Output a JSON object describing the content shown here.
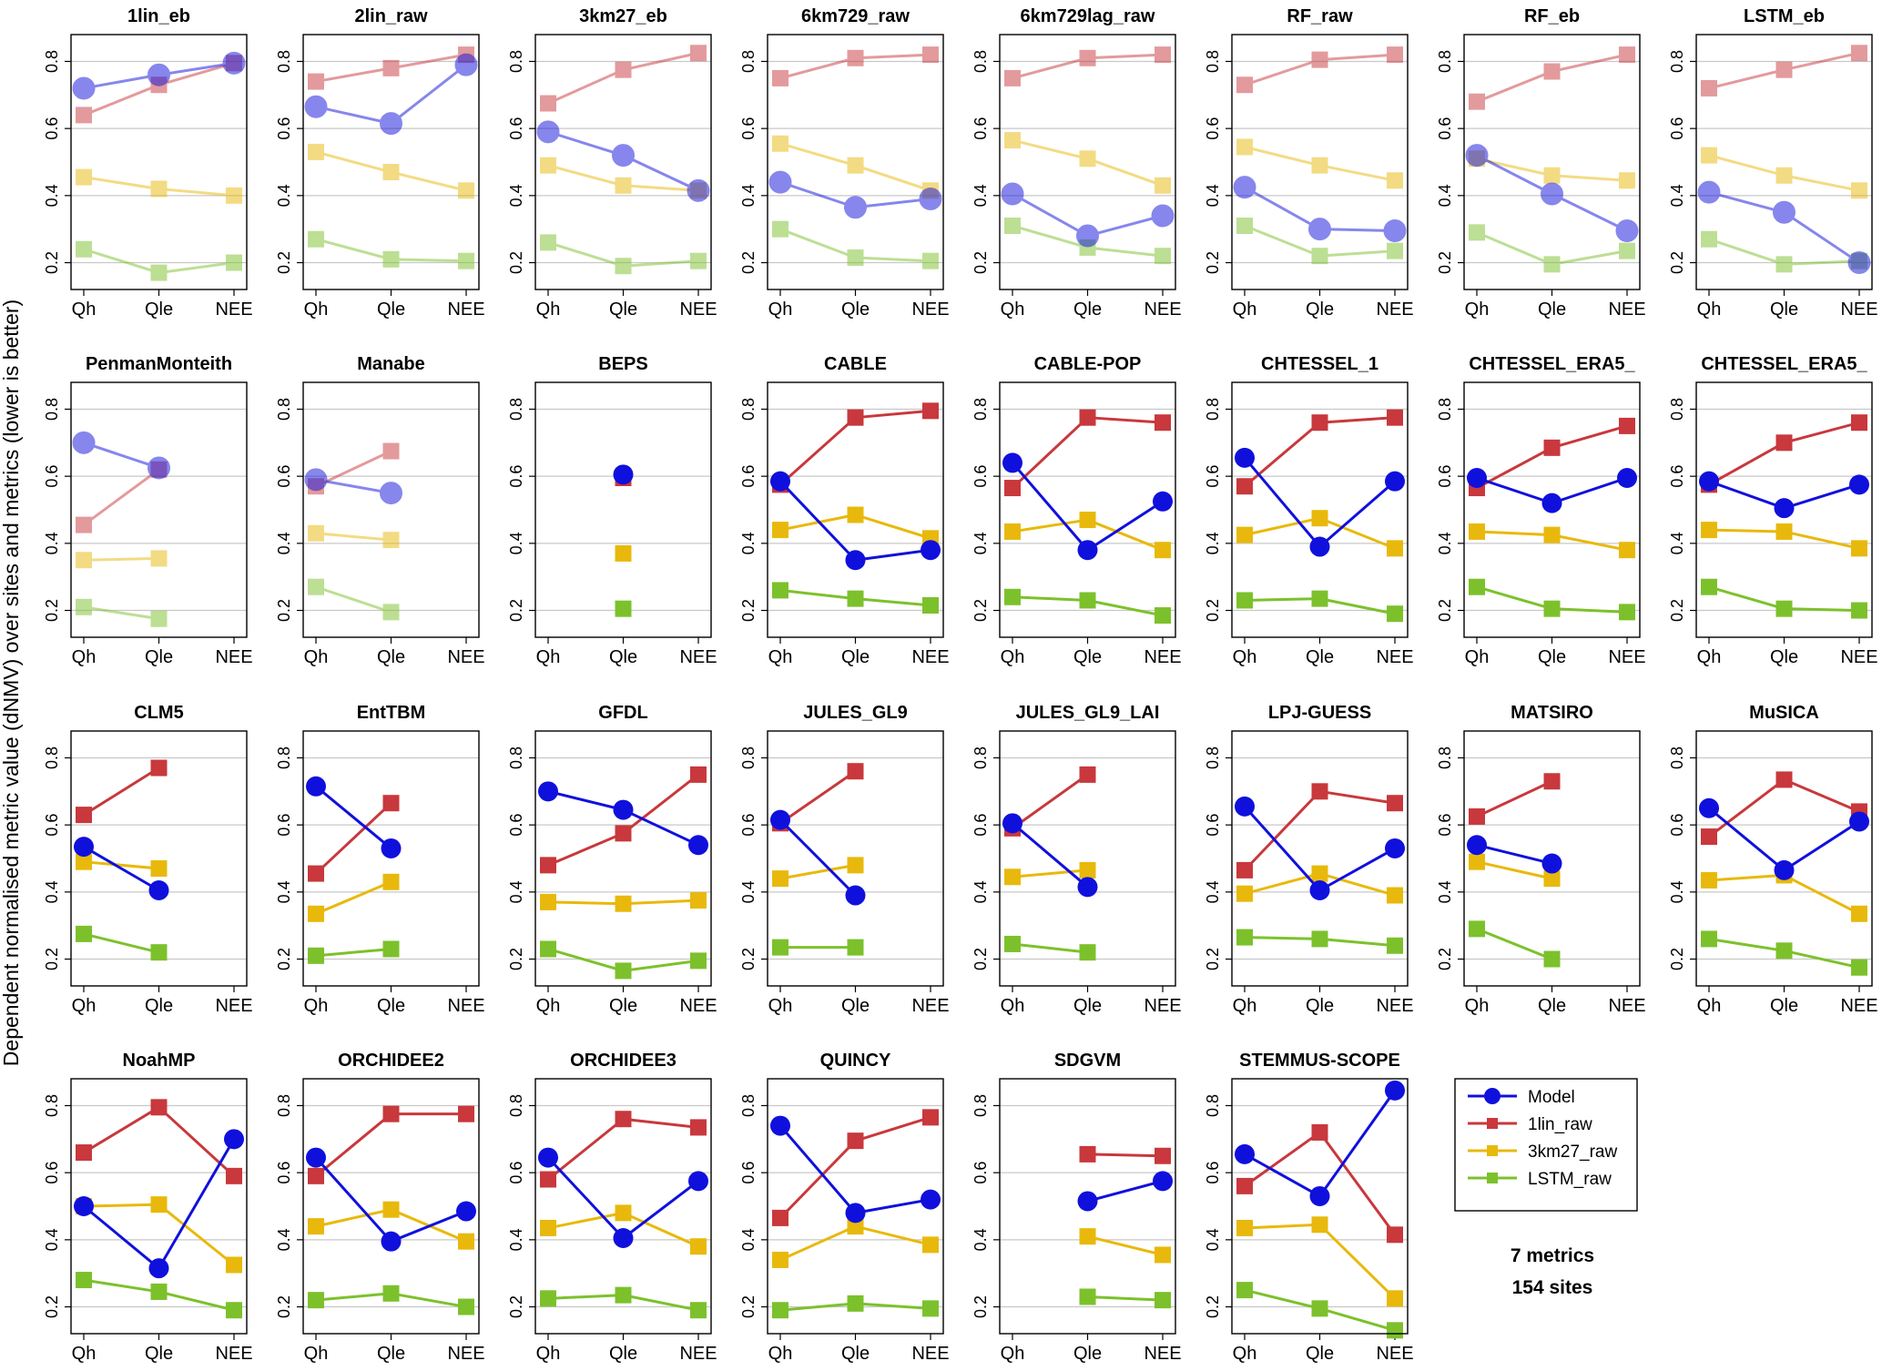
{
  "figure": {
    "ylabel": "Dependent normalised metric value (dNMV) over sites and metrics (lower is better)",
    "note_metrics": "7 metrics",
    "note_sites": "154 sites",
    "colors": {
      "Model": "#1010dd",
      "1lin_raw": "#c8383c",
      "3km27_raw": "#e8b90c",
      "LSTM_raw": "#7cc12c",
      "grid": "#c8c8c8",
      "frame": "#000000"
    }
  },
  "chart_data": {
    "type": "line",
    "categories": [
      "Qh",
      "Qle",
      "NEE"
    ],
    "ylim": [
      0.12,
      0.88
    ],
    "yticks": [
      "0.2",
      "0.4",
      "0.6",
      "0.8"
    ],
    "legend": {
      "placement": "right",
      "entries": [
        {
          "key": "Model",
          "label": "Model",
          "marker": "circle"
        },
        {
          "key": "1lin_raw",
          "label": "1lin_raw",
          "marker": "square"
        },
        {
          "key": "3km27_raw",
          "label": "3km27_raw",
          "marker": "square"
        },
        {
          "key": "LSTM_raw",
          "label": "LSTM_raw",
          "marker": "square"
        }
      ]
    },
    "panels": [
      {
        "title": "1lin_eb",
        "faded": true,
        "series": {
          "Model": [
            0.72,
            0.76,
            0.795
          ],
          "1lin_raw": [
            0.64,
            0.73,
            0.795
          ],
          "3km27_raw": [
            0.455,
            0.42,
            0.4
          ],
          "LSTM_raw": [
            0.24,
            0.17,
            0.2
          ]
        }
      },
      {
        "title": "2lin_raw",
        "faded": true,
        "series": {
          "Model": [
            0.665,
            0.615,
            0.79
          ],
          "1lin_raw": [
            0.74,
            0.78,
            0.82
          ],
          "3km27_raw": [
            0.53,
            0.47,
            0.415
          ],
          "LSTM_raw": [
            0.27,
            0.21,
            0.205
          ]
        }
      },
      {
        "title": "3km27_eb",
        "faded": true,
        "series": {
          "Model": [
            0.59,
            0.52,
            0.415
          ],
          "1lin_raw": [
            0.675,
            0.775,
            0.825
          ],
          "3km27_raw": [
            0.49,
            0.43,
            0.415
          ],
          "LSTM_raw": [
            0.26,
            0.19,
            0.205
          ]
        }
      },
      {
        "title": "6km729_raw",
        "faded": true,
        "series": {
          "Model": [
            0.44,
            0.365,
            0.39
          ],
          "1lin_raw": [
            0.75,
            0.81,
            0.82
          ],
          "3km27_raw": [
            0.555,
            0.49,
            0.415
          ],
          "LSTM_raw": [
            0.3,
            0.215,
            0.205
          ]
        }
      },
      {
        "title": "6km729lag_raw",
        "faded": true,
        "series": {
          "Model": [
            0.405,
            0.28,
            0.34
          ],
          "1lin_raw": [
            0.75,
            0.81,
            0.82
          ],
          "3km27_raw": [
            0.565,
            0.51,
            0.43
          ],
          "LSTM_raw": [
            0.31,
            0.245,
            0.22
          ]
        }
      },
      {
        "title": "RF_raw",
        "faded": true,
        "series": {
          "Model": [
            0.425,
            0.3,
            0.295
          ],
          "1lin_raw": [
            0.73,
            0.805,
            0.82
          ],
          "3km27_raw": [
            0.545,
            0.49,
            0.445
          ],
          "LSTM_raw": [
            0.31,
            0.22,
            0.235
          ]
        }
      },
      {
        "title": "RF_eb",
        "faded": true,
        "series": {
          "Model": [
            0.52,
            0.405,
            0.295
          ],
          "1lin_raw": [
            0.68,
            0.77,
            0.82
          ],
          "3km27_raw": [
            0.51,
            0.46,
            0.445
          ],
          "LSTM_raw": [
            0.29,
            0.195,
            0.235
          ]
        }
      },
      {
        "title": "LSTM_eb",
        "faded": true,
        "series": {
          "Model": [
            0.41,
            0.35,
            0.2
          ],
          "1lin_raw": [
            0.72,
            0.775,
            0.825
          ],
          "3km27_raw": [
            0.52,
            0.46,
            0.415
          ],
          "LSTM_raw": [
            0.27,
            0.195,
            0.205
          ]
        }
      },
      {
        "title": "PenmanMonteith",
        "faded": true,
        "series": {
          "Model": [
            0.7,
            0.625,
            null
          ],
          "1lin_raw": [
            0.455,
            0.62,
            null
          ],
          "3km27_raw": [
            0.35,
            0.355,
            null
          ],
          "LSTM_raw": [
            0.21,
            0.175,
            null
          ]
        }
      },
      {
        "title": "Manabe",
        "faded": true,
        "series": {
          "Model": [
            0.59,
            0.55,
            null
          ],
          "1lin_raw": [
            0.57,
            0.675,
            null
          ],
          "3km27_raw": [
            0.43,
            0.41,
            null
          ],
          "LSTM_raw": [
            0.27,
            0.195,
            null
          ]
        }
      },
      {
        "title": "BEPS",
        "faded": false,
        "series": {
          "Model": [
            null,
            0.605,
            null
          ],
          "1lin_raw": [
            null,
            0.595,
            null
          ],
          "3km27_raw": [
            null,
            0.37,
            null
          ],
          "LSTM_raw": [
            null,
            0.205,
            null
          ]
        }
      },
      {
        "title": "CABLE",
        "faded": false,
        "series": {
          "Model": [
            0.585,
            0.35,
            0.38
          ],
          "1lin_raw": [
            0.575,
            0.775,
            0.795
          ],
          "3km27_raw": [
            0.44,
            0.485,
            0.415
          ],
          "LSTM_raw": [
            0.26,
            0.235,
            0.215
          ]
        }
      },
      {
        "title": "CABLE-POP",
        "faded": false,
        "series": {
          "Model": [
            0.64,
            0.38,
            0.525
          ],
          "1lin_raw": [
            0.565,
            0.775,
            0.76
          ],
          "3km27_raw": [
            0.435,
            0.47,
            0.38
          ],
          "LSTM_raw": [
            0.24,
            0.23,
            0.185
          ]
        }
      },
      {
        "title": "CHTESSEL_1",
        "faded": false,
        "series": {
          "Model": [
            0.655,
            0.39,
            0.585
          ],
          "1lin_raw": [
            0.57,
            0.76,
            0.775
          ],
          "3km27_raw": [
            0.425,
            0.475,
            0.385
          ],
          "LSTM_raw": [
            0.23,
            0.235,
            0.19
          ]
        }
      },
      {
        "title": "CHTESSEL_ERA5_",
        "faded": false,
        "series": {
          "Model": [
            0.595,
            0.52,
            0.595
          ],
          "1lin_raw": [
            0.565,
            0.685,
            0.75
          ],
          "3km27_raw": [
            0.435,
            0.425,
            0.38
          ],
          "LSTM_raw": [
            0.27,
            0.205,
            0.195
          ]
        }
      },
      {
        "title": "CHTESSEL_ERA5_",
        "faded": false,
        "series": {
          "Model": [
            0.585,
            0.505,
            0.575
          ],
          "1lin_raw": [
            0.575,
            0.7,
            0.76
          ],
          "3km27_raw": [
            0.44,
            0.435,
            0.385
          ],
          "LSTM_raw": [
            0.27,
            0.205,
            0.2
          ]
        }
      },
      {
        "title": "CLM5",
        "faded": false,
        "series": {
          "Model": [
            0.535,
            0.405,
            null
          ],
          "1lin_raw": [
            0.63,
            0.77,
            null
          ],
          "3km27_raw": [
            0.49,
            0.47,
            null
          ],
          "LSTM_raw": [
            0.275,
            0.22,
            null
          ]
        }
      },
      {
        "title": "EntTBM",
        "faded": false,
        "series": {
          "Model": [
            0.715,
            0.53,
            null
          ],
          "1lin_raw": [
            0.455,
            0.665,
            null
          ],
          "3km27_raw": [
            0.335,
            0.43,
            null
          ],
          "LSTM_raw": [
            0.21,
            0.23,
            null
          ]
        }
      },
      {
        "title": "GFDL",
        "faded": false,
        "series": {
          "Model": [
            0.7,
            0.645,
            0.54
          ],
          "1lin_raw": [
            0.48,
            0.575,
            0.75
          ],
          "3km27_raw": [
            0.37,
            0.365,
            0.375
          ],
          "LSTM_raw": [
            0.23,
            0.165,
            0.195
          ]
        }
      },
      {
        "title": "JULES_GL9",
        "faded": false,
        "series": {
          "Model": [
            0.615,
            0.39,
            null
          ],
          "1lin_raw": [
            0.605,
            0.76,
            null
          ],
          "3km27_raw": [
            0.44,
            0.48,
            null
          ],
          "LSTM_raw": [
            0.235,
            0.235,
            null
          ]
        }
      },
      {
        "title": "JULES_GL9_LAI",
        "faded": false,
        "series": {
          "Model": [
            0.605,
            0.415,
            null
          ],
          "1lin_raw": [
            0.59,
            0.75,
            null
          ],
          "3km27_raw": [
            0.445,
            0.465,
            null
          ],
          "LSTM_raw": [
            0.245,
            0.22,
            null
          ]
        }
      },
      {
        "title": "LPJ-GUESS",
        "faded": false,
        "series": {
          "Model": [
            0.655,
            0.405,
            0.53
          ],
          "1lin_raw": [
            0.465,
            0.7,
            0.665
          ],
          "3km27_raw": [
            0.395,
            0.455,
            0.39
          ],
          "LSTM_raw": [
            0.265,
            0.26,
            0.24
          ]
        }
      },
      {
        "title": "MATSIRO",
        "faded": false,
        "series": {
          "Model": [
            0.54,
            0.485,
            null
          ],
          "1lin_raw": [
            0.625,
            0.73,
            null
          ],
          "3km27_raw": [
            0.49,
            0.44,
            null
          ],
          "LSTM_raw": [
            0.29,
            0.2,
            null
          ]
        }
      },
      {
        "title": "MuSICA",
        "faded": false,
        "series": {
          "Model": [
            0.65,
            0.465,
            0.61
          ],
          "1lin_raw": [
            0.565,
            0.735,
            0.64
          ],
          "3km27_raw": [
            0.435,
            0.45,
            0.335
          ],
          "LSTM_raw": [
            0.26,
            0.225,
            0.175
          ]
        }
      },
      {
        "title": "NoahMP",
        "faded": false,
        "series": {
          "Model": [
            0.5,
            0.315,
            0.7
          ],
          "1lin_raw": [
            0.66,
            0.795,
            0.59
          ],
          "3km27_raw": [
            0.5,
            0.505,
            0.325
          ],
          "LSTM_raw": [
            0.28,
            0.245,
            0.19
          ]
        }
      },
      {
        "title": "ORCHIDEE2",
        "faded": false,
        "series": {
          "Model": [
            0.645,
            0.395,
            0.485
          ],
          "1lin_raw": [
            0.59,
            0.775,
            0.775
          ],
          "3km27_raw": [
            0.44,
            0.49,
            0.395
          ],
          "LSTM_raw": [
            0.22,
            0.24,
            0.2
          ]
        }
      },
      {
        "title": "ORCHIDEE3",
        "faded": false,
        "series": {
          "Model": [
            0.645,
            0.405,
            0.575
          ],
          "1lin_raw": [
            0.58,
            0.76,
            0.735
          ],
          "3km27_raw": [
            0.435,
            0.48,
            0.38
          ],
          "LSTM_raw": [
            0.225,
            0.235,
            0.19
          ]
        }
      },
      {
        "title": "QUINCY",
        "faded": false,
        "series": {
          "Model": [
            0.74,
            0.48,
            0.52
          ],
          "1lin_raw": [
            0.465,
            0.695,
            0.765
          ],
          "3km27_raw": [
            0.34,
            0.44,
            0.385
          ],
          "LSTM_raw": [
            0.19,
            0.21,
            0.195
          ]
        }
      },
      {
        "title": "SDGVM",
        "faded": false,
        "series": {
          "Model": [
            null,
            0.515,
            0.575
          ],
          "1lin_raw": [
            null,
            0.655,
            0.65
          ],
          "3km27_raw": [
            null,
            0.41,
            0.355
          ],
          "LSTM_raw": [
            null,
            0.23,
            0.22
          ]
        }
      },
      {
        "title": "STEMMUS-SCOPE",
        "faded": false,
        "series": {
          "Model": [
            0.655,
            0.53,
            0.845
          ],
          "1lin_raw": [
            0.56,
            0.72,
            0.415
          ],
          "3km27_raw": [
            0.435,
            0.445,
            0.225
          ],
          "LSTM_raw": [
            0.25,
            0.195,
            0.13
          ]
        }
      }
    ]
  }
}
